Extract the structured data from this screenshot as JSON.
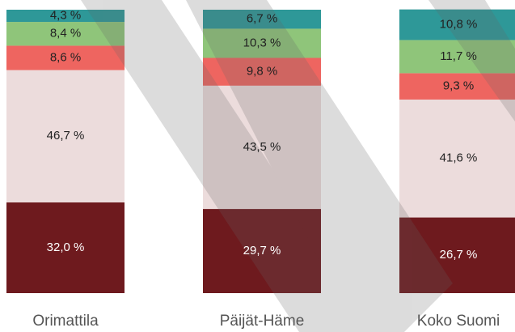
{
  "chart_data": {
    "type": "stacked-bar",
    "categories": [
      "Orimattila",
      "Päijät-Häme",
      "Koko Suomi"
    ],
    "ylim": [
      0,
      100
    ],
    "series": [
      {
        "color": "#6e1a1e",
        "values": [
          32.0,
          29.7,
          26.7
        ],
        "value_labels": [
          "32,0 %",
          "29,7 %",
          "26,7 %"
        ]
      },
      {
        "color": "#ecdcdc",
        "values": [
          46.7,
          43.5,
          41.6
        ],
        "value_labels": [
          "46,7 %",
          "43,5 %",
          "41,6 %"
        ]
      },
      {
        "color": "#ee6560",
        "values": [
          8.6,
          9.8,
          9.3
        ],
        "value_labels": [
          "8,6 %",
          "9,8 %",
          "9,3 %"
        ]
      },
      {
        "color": "#8fc57a",
        "values": [
          8.4,
          10.3,
          11.7
        ],
        "value_labels": [
          "8,4 %",
          "10,3 %",
          "11,7 %"
        ]
      },
      {
        "color": "#2e9898",
        "values": [
          4.3,
          6.7,
          10.8
        ],
        "value_labels": [
          "4,3 %",
          "6,7 %",
          "10,8 %"
        ]
      }
    ]
  }
}
